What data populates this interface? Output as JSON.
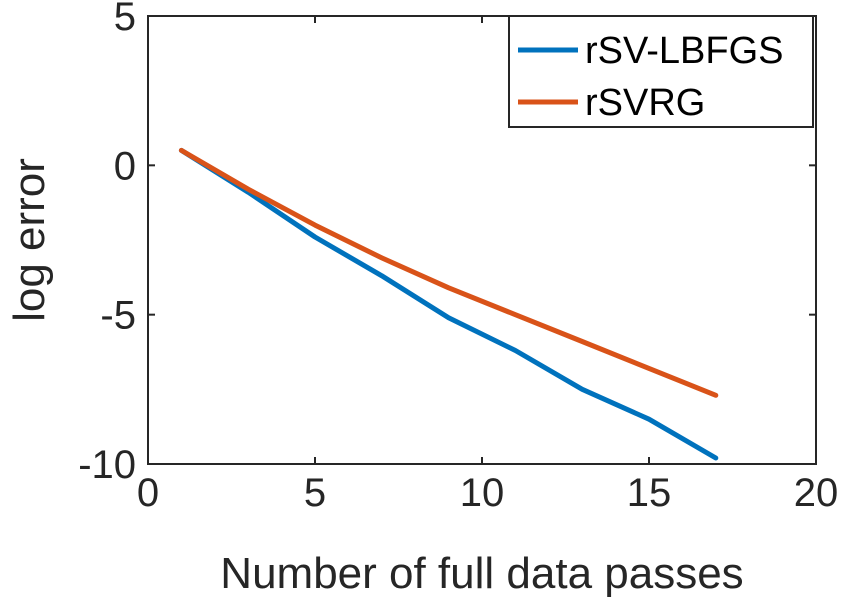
{
  "chart_data": {
    "type": "line",
    "xlabel": "Number of full data passes",
    "ylabel": "log error",
    "xlim": [
      0,
      20
    ],
    "ylim": [
      -10,
      5
    ],
    "xticks": [
      0,
      5,
      10,
      15,
      20
    ],
    "yticks": [
      -10,
      -5,
      0,
      5
    ],
    "xtick_labels": [
      "0",
      "5",
      "10",
      "15",
      "20"
    ],
    "ytick_labels": [
      "-10",
      "-5",
      "0",
      "5"
    ],
    "grid": false,
    "legend_position": "top-right",
    "series": [
      {
        "name": "rSV-LBFGS",
        "color": "#0072BD",
        "x": [
          1,
          3,
          5,
          7,
          9,
          11,
          13,
          15,
          17
        ],
        "y": [
          0.5,
          -0.9,
          -2.4,
          -3.7,
          -5.1,
          -6.2,
          -7.5,
          -8.5,
          -9.8
        ]
      },
      {
        "name": "rSVRG",
        "color": "#D95319",
        "x": [
          1,
          3,
          5,
          7,
          9,
          11,
          13,
          15,
          17
        ],
        "y": [
          0.5,
          -0.8,
          -2.0,
          -3.1,
          -4.1,
          -5.0,
          -5.9,
          -6.8,
          -7.7
        ]
      }
    ]
  }
}
